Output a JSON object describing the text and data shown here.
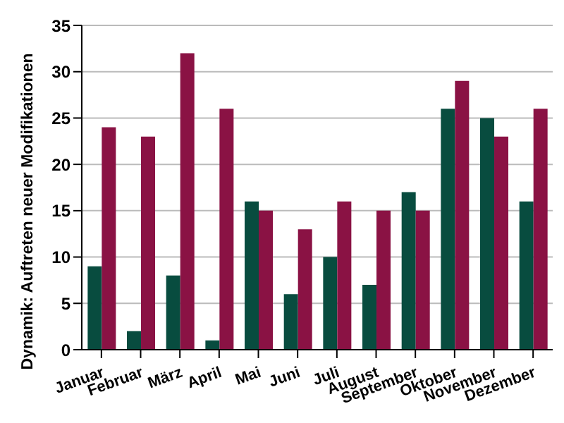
{
  "chart_data": {
    "type": "bar",
    "ylabel": "Dynamik: Auftreten neuer Modifikationen",
    "categories": [
      "Januar",
      "Februar",
      "März",
      "April",
      "Mai",
      "Juni",
      "Juli",
      "August",
      "September",
      "Oktober",
      "November",
      "Dezember"
    ],
    "series": [
      {
        "color": "#084c3f",
        "values": [
          9,
          2,
          8,
          1,
          16,
          6,
          10,
          7,
          17,
          26,
          25,
          16
        ]
      },
      {
        "color": "#8a1244",
        "values": [
          24,
          23,
          32,
          26,
          15,
          13,
          16,
          15,
          15,
          29,
          23,
          26
        ]
      }
    ],
    "ylim": [
      0,
      35
    ],
    "yticks": [
      0,
      5,
      10,
      15,
      20,
      25,
      30,
      35
    ],
    "grid": "y",
    "legend": false
  }
}
